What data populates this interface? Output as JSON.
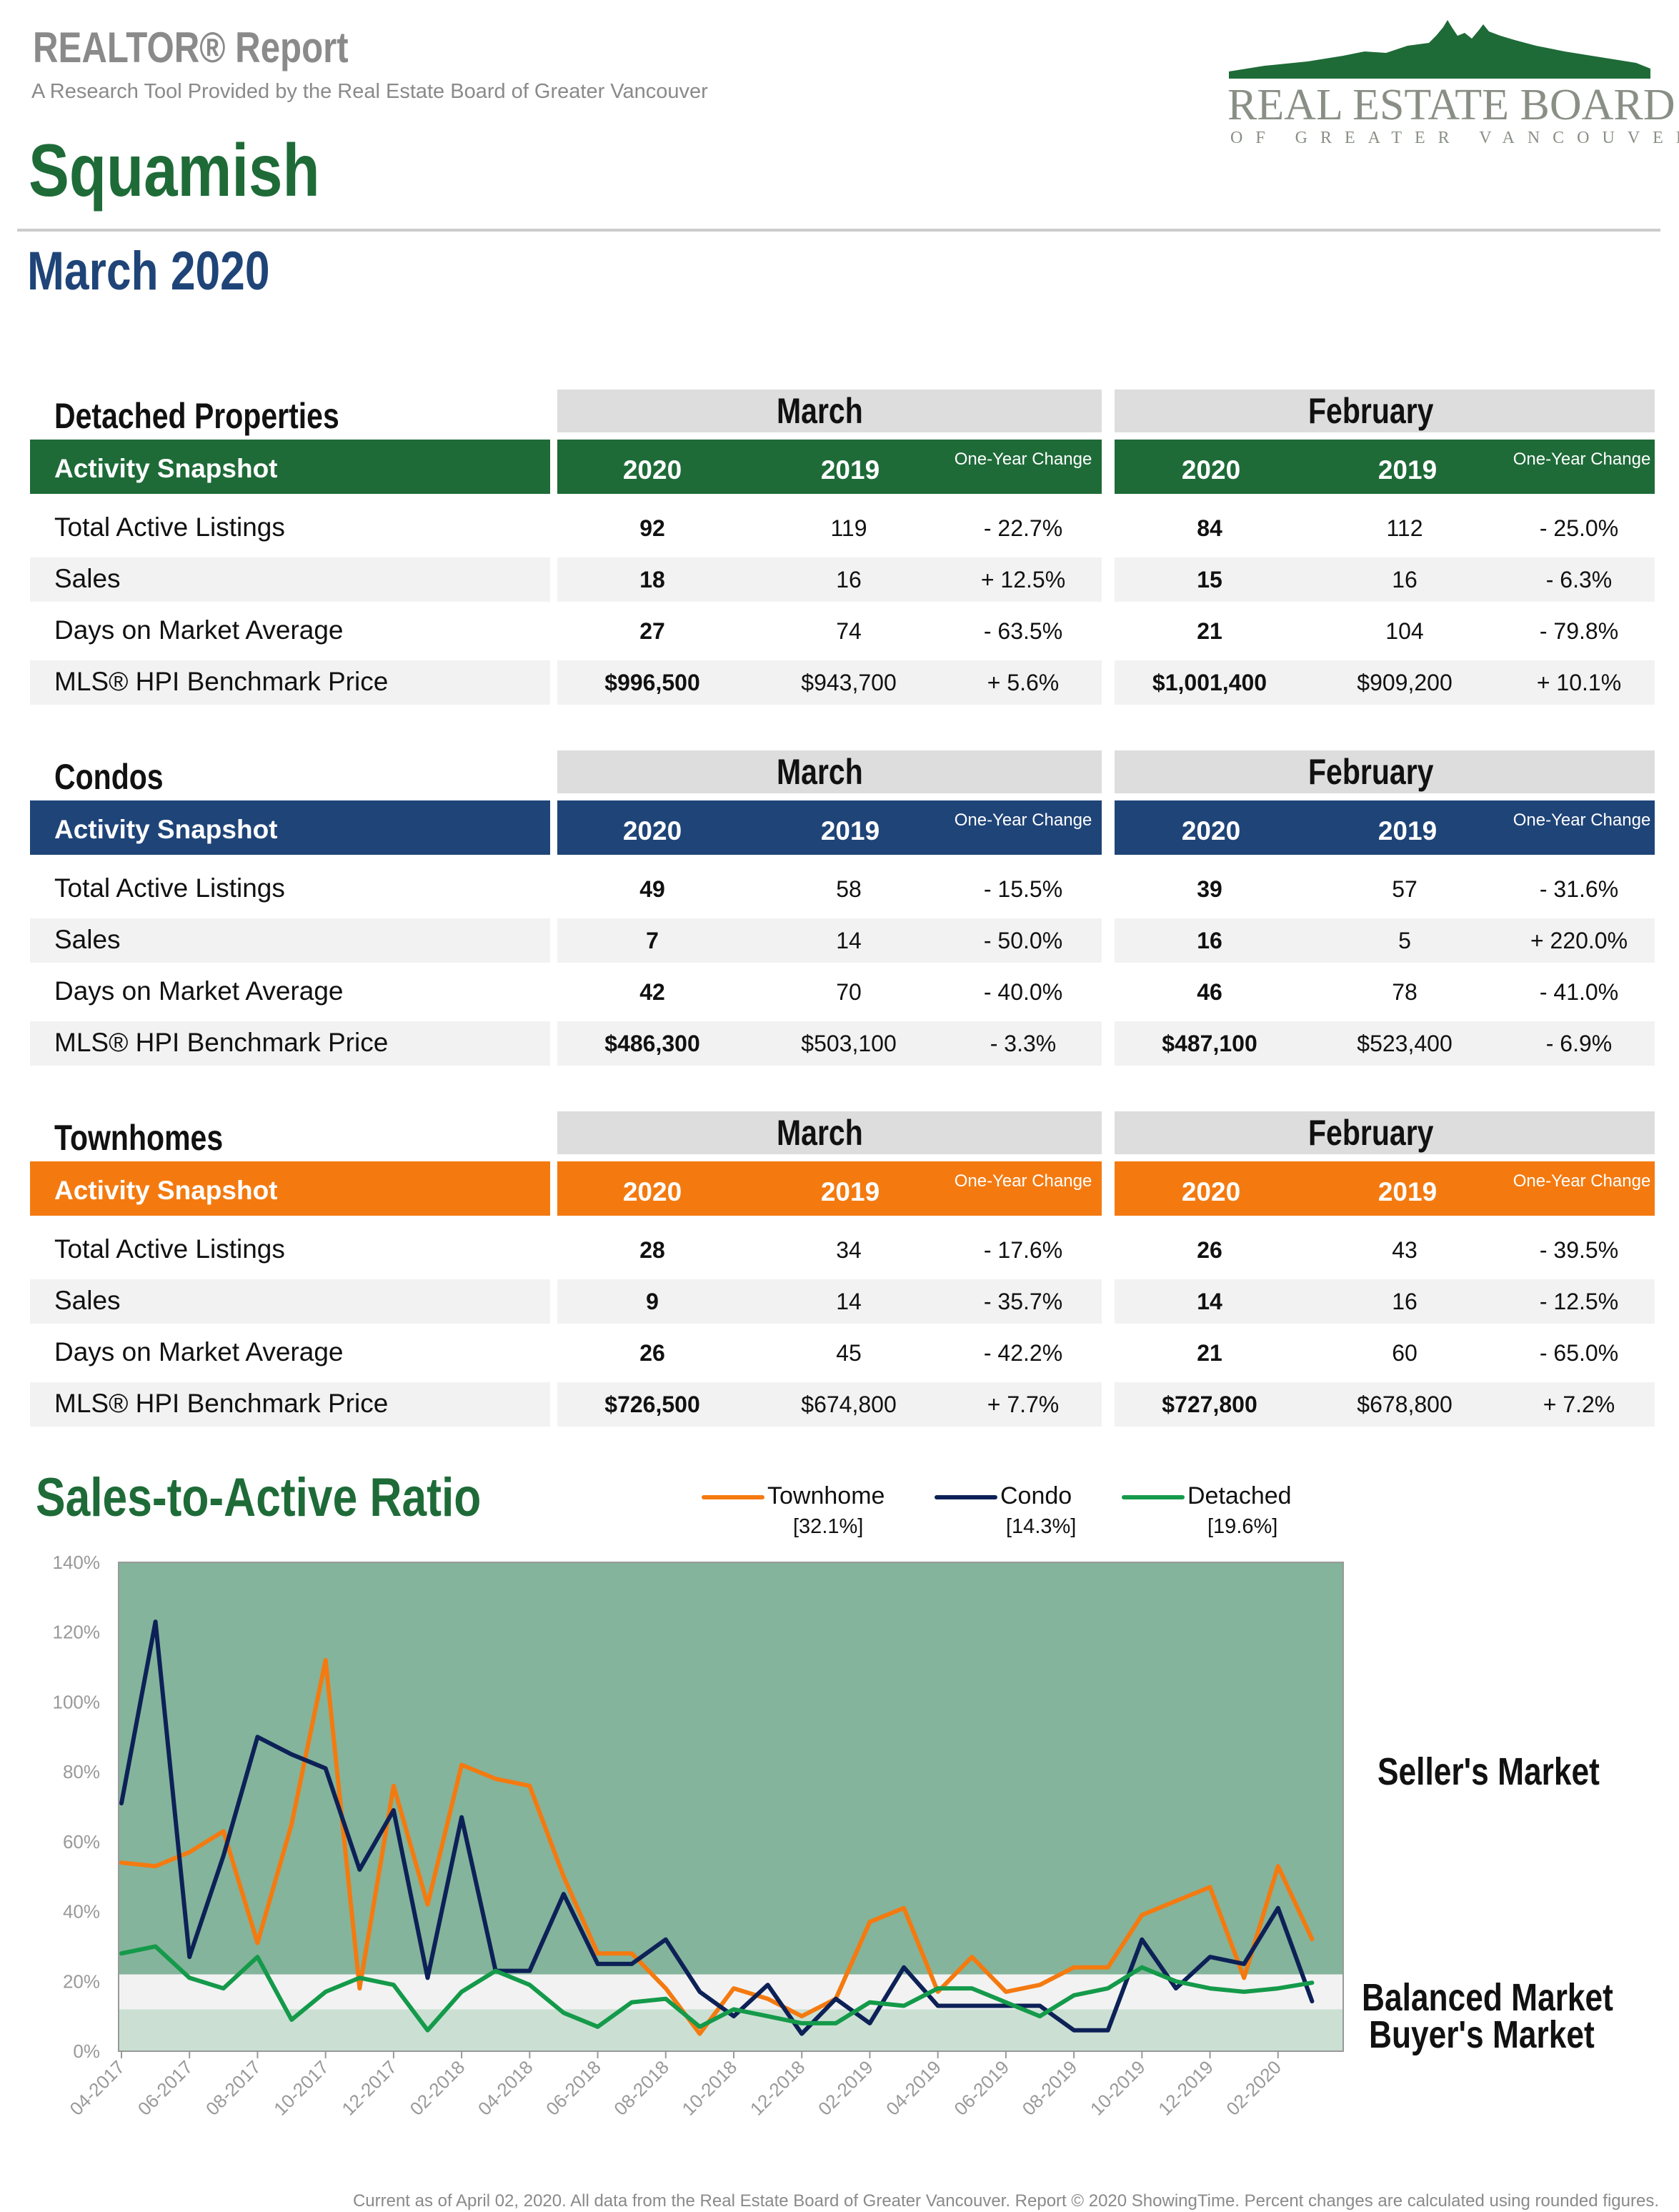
{
  "header": {
    "report_title": "REALTOR® Report",
    "report_subtitle": "A Research Tool Provided by the Real Estate Board of Greater Vancouver",
    "area": "Squamish",
    "period": "March 2020",
    "logo_name": "REAL ESTATE BOARD",
    "logo_sub": "OF GREATER VANCOUVER"
  },
  "tables": [
    {
      "title": "Detached Properties",
      "color": "#1e6b38",
      "snapshot_label": "Activity Snapshot",
      "current_month": "March",
      "previous_month": "February",
      "col_2020": "2020",
      "col_2019": "2019",
      "change_label": "One-Year Change",
      "rows": [
        {
          "label": "Total Active Listings",
          "mar_2020": "92",
          "mar_2019": "119",
          "mar_change": "- 22.7%",
          "feb_2020": "84",
          "feb_2019": "112",
          "feb_change": "- 25.0%"
        },
        {
          "label": "Sales",
          "mar_2020": "18",
          "mar_2019": "16",
          "mar_change": "+ 12.5%",
          "feb_2020": "15",
          "feb_2019": "16",
          "feb_change": "- 6.3%"
        },
        {
          "label": "Days on Market Average",
          "mar_2020": "27",
          "mar_2019": "74",
          "mar_change": "- 63.5%",
          "feb_2020": "21",
          "feb_2019": "104",
          "feb_change": "- 79.8%"
        },
        {
          "label": "MLS® HPI Benchmark Price",
          "mar_2020": "$996,500",
          "mar_2019": "$943,700",
          "mar_change": "+ 5.6%",
          "feb_2020": "$1,001,400",
          "feb_2019": "$909,200",
          "feb_change": "+ 10.1%"
        }
      ]
    },
    {
      "title": "Condos",
      "color": "#1f4478",
      "snapshot_label": "Activity Snapshot",
      "current_month": "March",
      "previous_month": "February",
      "col_2020": "2020",
      "col_2019": "2019",
      "change_label": "One-Year Change",
      "rows": [
        {
          "label": "Total Active Listings",
          "mar_2020": "49",
          "mar_2019": "58",
          "mar_change": "- 15.5%",
          "feb_2020": "39",
          "feb_2019": "57",
          "feb_change": "- 31.6%"
        },
        {
          "label": "Sales",
          "mar_2020": "7",
          "mar_2019": "14",
          "mar_change": "- 50.0%",
          "feb_2020": "16",
          "feb_2019": "5",
          "feb_change": "+ 220.0%"
        },
        {
          "label": "Days on Market Average",
          "mar_2020": "42",
          "mar_2019": "70",
          "mar_change": "- 40.0%",
          "feb_2020": "46",
          "feb_2019": "78",
          "feb_change": "- 41.0%"
        },
        {
          "label": "MLS® HPI Benchmark Price",
          "mar_2020": "$486,300",
          "mar_2019": "$503,100",
          "mar_change": "- 3.3%",
          "feb_2020": "$487,100",
          "feb_2019": "$523,400",
          "feb_change": "- 6.9%"
        }
      ]
    },
    {
      "title": "Townhomes",
      "color": "#f47a10",
      "snapshot_label": "Activity Snapshot",
      "current_month": "March",
      "previous_month": "February",
      "col_2020": "2020",
      "col_2019": "2019",
      "change_label": "One-Year Change",
      "rows": [
        {
          "label": "Total Active Listings",
          "mar_2020": "28",
          "mar_2019": "34",
          "mar_change": "- 17.6%",
          "feb_2020": "26",
          "feb_2019": "43",
          "feb_change": "- 39.5%"
        },
        {
          "label": "Sales",
          "mar_2020": "9",
          "mar_2019": "14",
          "mar_change": "- 35.7%",
          "feb_2020": "14",
          "feb_2019": "16",
          "feb_change": "- 12.5%"
        },
        {
          "label": "Days on Market Average",
          "mar_2020": "26",
          "mar_2019": "45",
          "mar_change": "- 42.2%",
          "feb_2020": "21",
          "feb_2019": "60",
          "feb_change": "- 65.0%"
        },
        {
          "label": "MLS® HPI Benchmark Price",
          "mar_2020": "$726,500",
          "mar_2019": "$674,800",
          "mar_change": "+ 7.7%",
          "feb_2020": "$727,800",
          "feb_2019": "$678,800",
          "feb_change": "+ 7.2%"
        }
      ]
    }
  ],
  "ratio_chart": {
    "title": "Sales-to-Active Ratio",
    "legend": [
      {
        "name": "Townhome",
        "value": "[32.1%]",
        "color": "#f47a10"
      },
      {
        "name": "Condo",
        "value": "[14.3%]",
        "color": "#0d2157"
      },
      {
        "name": "Detached",
        "value": "[19.6%]",
        "color": "#149a4a"
      }
    ],
    "zones": {
      "seller": "Seller's Market",
      "balanced": "Balanced Market",
      "buyer": "Buyer's Market"
    }
  },
  "chart_data": {
    "type": "line",
    "title": "Sales-to-Active Ratio",
    "y_tick_labels": [
      "0%",
      "20%",
      "40%",
      "60%",
      "80%",
      "100%",
      "120%",
      "140%"
    ],
    "ylim": [
      0,
      140
    ],
    "x_tick_labels": [
      "04-2017",
      "06-2017",
      "08-2017",
      "10-2017",
      "12-2017",
      "02-2018",
      "04-2018",
      "06-2018",
      "08-2018",
      "10-2018",
      "12-2018",
      "02-2019",
      "04-2019",
      "06-2019",
      "08-2019",
      "10-2019",
      "12-2019",
      "02-2020"
    ],
    "x": [
      "04-2017",
      "05-2017",
      "06-2017",
      "07-2017",
      "08-2017",
      "09-2017",
      "10-2017",
      "11-2017",
      "12-2017",
      "01-2018",
      "02-2018",
      "03-2018",
      "04-2018",
      "05-2018",
      "06-2018",
      "07-2018",
      "08-2018",
      "09-2018",
      "10-2018",
      "11-2018",
      "12-2018",
      "01-2019",
      "02-2019",
      "03-2019",
      "04-2019",
      "05-2019",
      "06-2019",
      "07-2019",
      "08-2019",
      "09-2019",
      "10-2019",
      "11-2019",
      "12-2019",
      "01-2020",
      "02-2020",
      "03-2020"
    ],
    "bands": {
      "buyer": [
        0,
        12
      ],
      "balanced": [
        12,
        22
      ],
      "seller": [
        22,
        140
      ]
    },
    "series": [
      {
        "name": "Townhome",
        "values": [
          54,
          53,
          57,
          63,
          31,
          65,
          112,
          18,
          76,
          42,
          82,
          78,
          76,
          50,
          28,
          28,
          18,
          5,
          18,
          15,
          10,
          15,
          37,
          41,
          17,
          27,
          17,
          19,
          24,
          24,
          39,
          43,
          47,
          21,
          53,
          32.1
        ]
      },
      {
        "name": "Condo",
        "values": [
          71,
          123,
          27,
          56,
          90,
          85,
          81,
          52,
          69,
          21,
          67,
          23,
          23,
          45,
          25,
          25,
          32,
          17,
          10,
          19,
          5,
          15,
          8,
          24,
          13,
          13,
          13,
          13,
          6,
          6,
          32,
          18,
          27,
          25,
          41,
          14.3
        ]
      },
      {
        "name": "Detached",
        "values": [
          28,
          30,
          21,
          18,
          27,
          9,
          17,
          21,
          19,
          6,
          17,
          23,
          19,
          11,
          7,
          14,
          15,
          7,
          12,
          10,
          8,
          8,
          14,
          13,
          18,
          18,
          14,
          10,
          16,
          18,
          24,
          20,
          18,
          17,
          18,
          19.6
        ]
      }
    ]
  },
  "footer": "Current as of April 02, 2020. All data from the Real Estate Board of Greater Vancouver. Report © 2020 ShowingTime. Percent changes are calculated using rounded figures."
}
